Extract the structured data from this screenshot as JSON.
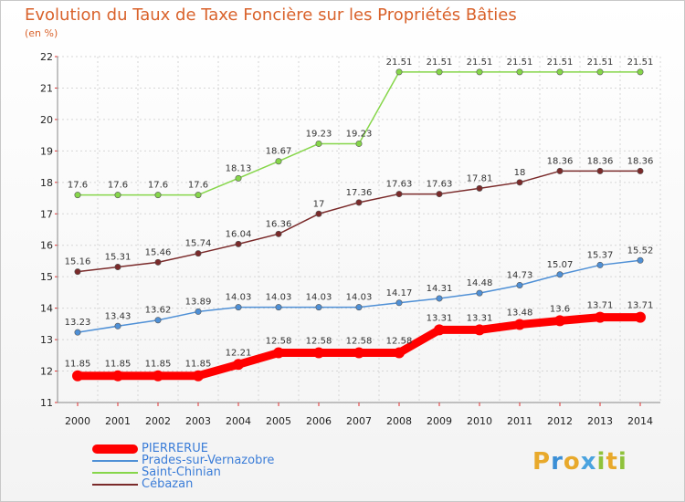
{
  "title": "Evolution du Taux de Taxe Foncière sur les Propriétés Bâties",
  "unit_label": "(en %)",
  "logo": {
    "letters": [
      "P",
      "r",
      "o",
      "x",
      "i",
      "t",
      "i"
    ],
    "colors": [
      "#e8a92b",
      "#3b8fd6",
      "#e8a92b",
      "#4aa3df",
      "#8fc23b",
      "#e8a92b",
      "#8fc23b"
    ]
  },
  "chart_data": {
    "type": "line",
    "x": [
      "2000",
      "2001",
      "2002",
      "2003",
      "2004",
      "2005",
      "2006",
      "2007",
      "2008",
      "2009",
      "2010",
      "2011",
      "2012",
      "2013",
      "2014"
    ],
    "ylim": [
      11,
      22
    ],
    "yticks": [
      "11",
      "12",
      "13",
      "14",
      "15",
      "16",
      "17",
      "18",
      "19",
      "20",
      "21",
      "22"
    ],
    "grid": true,
    "legend_position": "bottom-left",
    "series": [
      {
        "name": "PIERRERUE",
        "color": "#ff0000",
        "values": [
          11.85,
          11.85,
          11.85,
          11.85,
          12.21,
          12.58,
          12.58,
          12.58,
          12.58,
          13.31,
          13.31,
          13.48,
          13.6,
          13.71,
          13.71
        ],
        "labels": [
          "11.85",
          "11.85",
          "11.85",
          "11.85",
          "12.21",
          "12.58",
          "12.58",
          "12.58",
          "12.58",
          "13.31",
          "13.31",
          "13.48",
          "13.6",
          "13.71",
          "13.71"
        ]
      },
      {
        "name": "Prades-sur-Vernazobre",
        "color": "#4f90d6",
        "values": [
          13.23,
          13.43,
          13.62,
          13.89,
          14.03,
          14.03,
          14.03,
          14.03,
          14.17,
          14.31,
          14.48,
          14.73,
          15.07,
          15.37,
          15.52
        ],
        "labels": [
          "13.23",
          "13.43",
          "13.62",
          "13.89",
          "14.03",
          "14.03",
          "14.03",
          "14.03",
          "14.17",
          "14.31",
          "14.48",
          "14.73",
          "15.07",
          "15.37",
          "15.52"
        ]
      },
      {
        "name": "Saint-Chinian",
        "color": "#86d64a",
        "values": [
          17.6,
          17.6,
          17.6,
          17.6,
          18.13,
          18.67,
          19.23,
          19.23,
          21.51,
          21.51,
          21.51,
          21.51,
          21.51,
          21.51,
          21.51
        ],
        "labels": [
          "17.6",
          "17.6",
          "17.6",
          "17.6",
          "18.13",
          "18.67",
          "19.23",
          "19.23",
          "21.51",
          "21.51",
          "21.51",
          "21.51",
          "21.51",
          "21.51",
          "21.51"
        ]
      },
      {
        "name": "Cébazan",
        "color": "#7a2a2a",
        "values": [
          15.16,
          15.31,
          15.46,
          15.74,
          16.04,
          16.36,
          17,
          17.36,
          17.63,
          17.63,
          17.81,
          18,
          18.36,
          18.36,
          18.36
        ],
        "labels": [
          "15.16",
          "15.31",
          "15.46",
          "15.74",
          "16.04",
          "16.36",
          "17",
          "17.36",
          "17.63",
          "17.63",
          "17.81",
          "18",
          "18.36",
          "18.36",
          "18.36"
        ]
      }
    ]
  }
}
